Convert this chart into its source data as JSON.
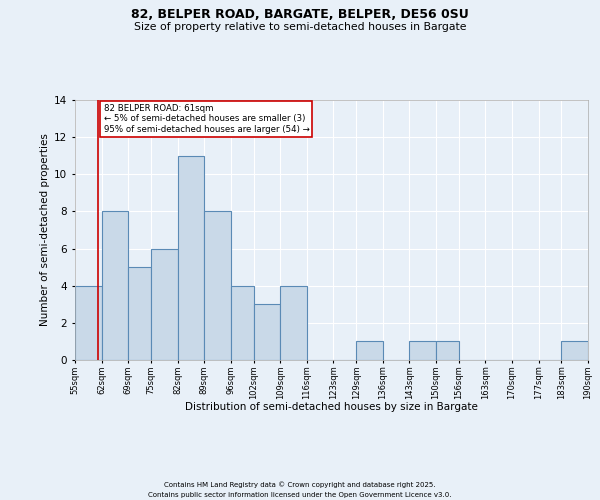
{
  "title1": "82, BELPER ROAD, BARGATE, BELPER, DE56 0SU",
  "title2": "Size of property relative to semi-detached houses in Bargate",
  "xlabel": "Distribution of semi-detached houses by size in Bargate",
  "ylabel": "Number of semi-detached properties",
  "footnote1": "Contains HM Land Registry data © Crown copyright and database right 2025.",
  "footnote2": "Contains public sector information licensed under the Open Government Licence v3.0.",
  "bins": [
    55,
    62,
    69,
    75,
    82,
    89,
    96,
    102,
    109,
    116,
    123,
    129,
    136,
    143,
    150,
    156,
    163,
    170,
    177,
    183,
    190
  ],
  "counts": [
    4,
    8,
    5,
    6,
    11,
    8,
    4,
    3,
    4,
    0,
    0,
    1,
    0,
    1,
    1,
    0,
    0,
    0,
    0,
    1
  ],
  "bar_facecolor": "#c9d9e8",
  "bar_edgecolor": "#5a8ab5",
  "bar_linewidth": 0.8,
  "vline_x": 61,
  "vline_color": "#cc0000",
  "annotation_text": "82 BELPER ROAD: 61sqm\n← 5% of semi-detached houses are smaller (3)\n95% of semi-detached houses are larger (54) →",
  "ylim": [
    0,
    14
  ],
  "yticks": [
    0,
    2,
    4,
    6,
    8,
    10,
    12,
    14
  ],
  "bg_color": "#e8f0f8",
  "plot_bg_color": "#e8f0f8",
  "grid_color": "#ffffff",
  "tick_labels": [
    "55sqm",
    "62sqm",
    "69sqm",
    "75sqm",
    "82sqm",
    "89sqm",
    "96sqm",
    "102sqm",
    "109sqm",
    "116sqm",
    "123sqm",
    "129sqm",
    "136sqm",
    "143sqm",
    "150sqm",
    "156sqm",
    "163sqm",
    "170sqm",
    "177sqm",
    "183sqm",
    "190sqm"
  ]
}
